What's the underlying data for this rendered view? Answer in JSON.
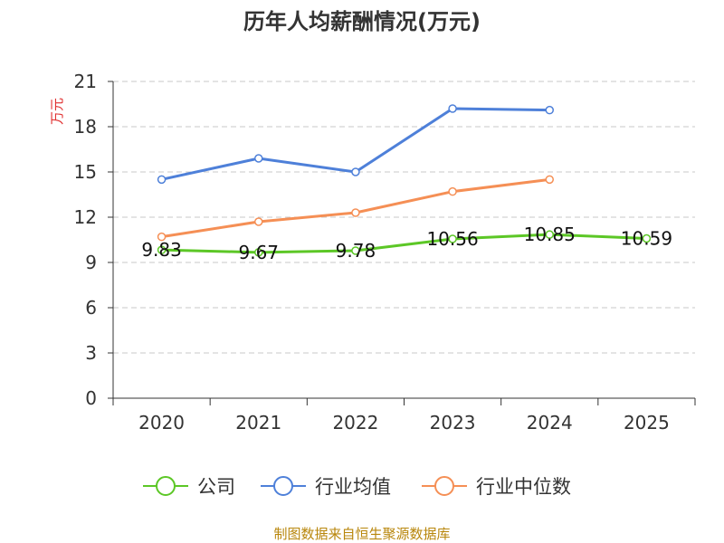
{
  "chart_data": {
    "type": "line",
    "title": "历年人均薪酬情况(万元)",
    "ylabel": "万元",
    "xlabel": "",
    "categories": [
      "2020",
      "2021",
      "2022",
      "2023",
      "2024",
      "2025"
    ],
    "ylim": [
      0,
      21
    ],
    "yticks": [
      0,
      3,
      6,
      9,
      12,
      15,
      18,
      21
    ],
    "grid": true,
    "legend_position": "bottom",
    "series": [
      {
        "name": "公司",
        "color": "#5cc726",
        "values": [
          9.83,
          9.67,
          9.78,
          10.56,
          10.85,
          10.59
        ],
        "labels": [
          "9.83",
          "9.67",
          "9.78",
          "10.56",
          "10.85",
          "10.59"
        ]
      },
      {
        "name": "行业均值",
        "color": "#4e80d9",
        "values": [
          14.5,
          15.9,
          15.0,
          19.2,
          19.1,
          null
        ]
      },
      {
        "name": "行业中位数",
        "color": "#f58f55",
        "values": [
          10.7,
          11.7,
          12.3,
          13.7,
          14.5,
          null
        ]
      }
    ],
    "source": "制图数据来自恒生聚源数据库"
  }
}
